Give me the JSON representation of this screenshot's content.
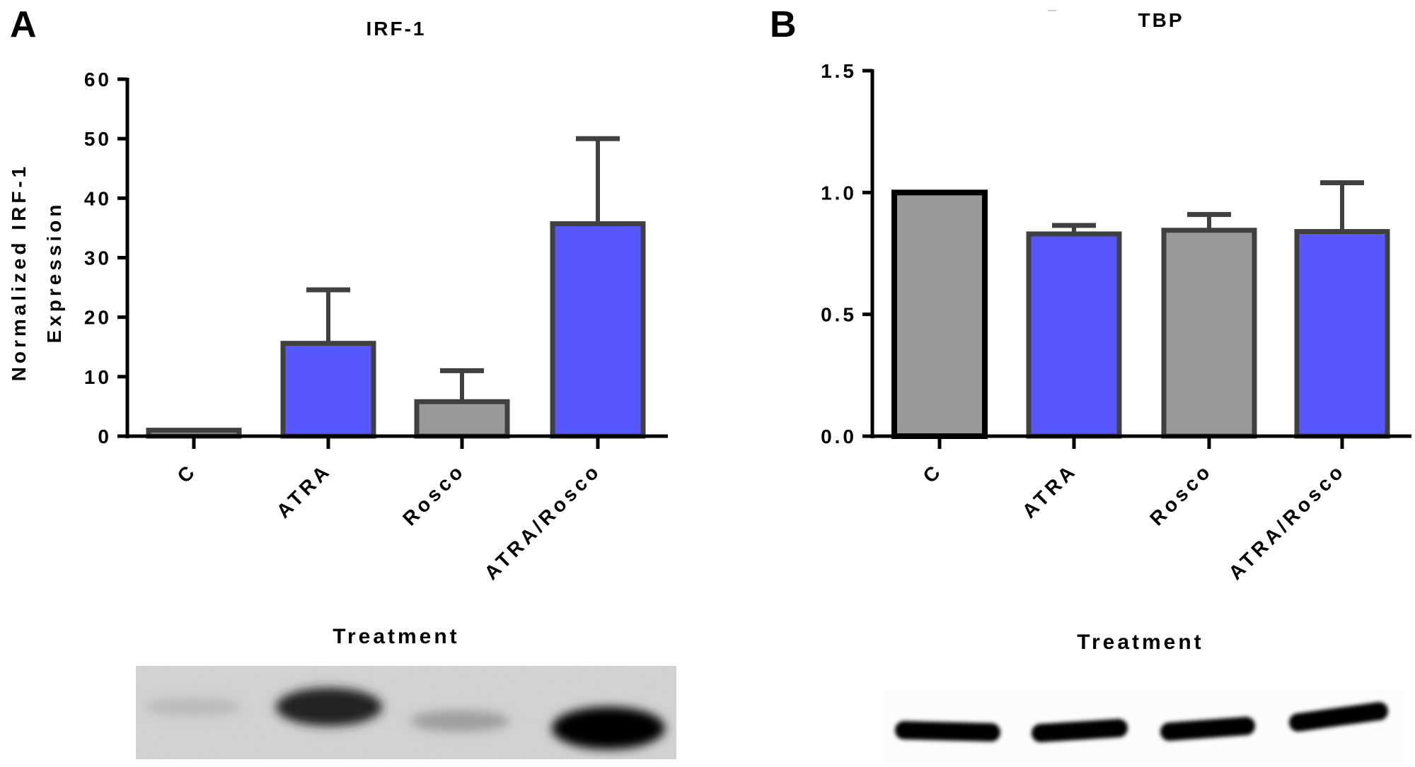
{
  "figure": {
    "panel_a_letter": "A",
    "panel_b_letter": "B"
  },
  "colors": {
    "gray_fill": "#999999",
    "blue_fill": "#5757fb",
    "bar_stroke": "#404040",
    "control_stroke_b": "#000000",
    "axis": "#000000"
  },
  "chart_data": [
    {
      "type": "bar",
      "title": "IRF-1",
      "xlabel": "Treatment",
      "ylabel": "Normalized IRF-1 Expression",
      "ylabel_lines": [
        "Normalized IRF-1",
        "Expression"
      ],
      "categories": [
        "C",
        "ATRA",
        "Rosco",
        "ATRA/Rosco"
      ],
      "values": [
        1.0,
        15.6,
        5.8,
        35.7
      ],
      "error_upper": [
        0,
        24.6,
        11.0,
        50.0
      ],
      "bar_colors": [
        "gray",
        "blue",
        "gray",
        "blue"
      ],
      "ylim": [
        0,
        60
      ],
      "yticks": [
        0,
        10,
        20,
        30,
        40,
        50,
        60
      ],
      "ytick_labels": [
        "0",
        "10",
        "20",
        "30",
        "40",
        "50",
        "60"
      ],
      "grid": false,
      "legend": null
    },
    {
      "type": "bar",
      "title": "TBP",
      "xlabel": "Treatment",
      "ylabel": "",
      "categories": [
        "C",
        "ATRA",
        "Rosco",
        "ATRA/Rosco"
      ],
      "values": [
        1.0,
        0.83,
        0.845,
        0.84
      ],
      "error_upper": [
        1.0,
        0.865,
        0.91,
        1.04
      ],
      "bar_colors": [
        "gray",
        "blue",
        "gray",
        "blue"
      ],
      "ylim": [
        0,
        1.5
      ],
      "yticks": [
        0.0,
        0.5,
        1.0,
        1.5
      ],
      "ytick_labels": [
        "0.0",
        "0.5",
        "1.0",
        "1.5"
      ],
      "grid": false,
      "legend": null
    }
  ],
  "blots": [
    {
      "label": "IRF-1 western blot",
      "background": "#d2d2d2",
      "bands": [
        {
          "lane": "C",
          "intensity": 0.12
        },
        {
          "lane": "ATRA",
          "intensity": 0.85
        },
        {
          "lane": "Rosco",
          "intensity": 0.25
        },
        {
          "lane": "ATRA/Rosco",
          "intensity": 1.0
        }
      ]
    },
    {
      "label": "TBP western blot",
      "background": "#fcfcfc",
      "bands": [
        {
          "lane": "C",
          "intensity": 1.0
        },
        {
          "lane": "ATRA",
          "intensity": 1.0
        },
        {
          "lane": "Rosco",
          "intensity": 1.0
        },
        {
          "lane": "ATRA/Rosco",
          "intensity": 1.0
        }
      ]
    }
  ]
}
